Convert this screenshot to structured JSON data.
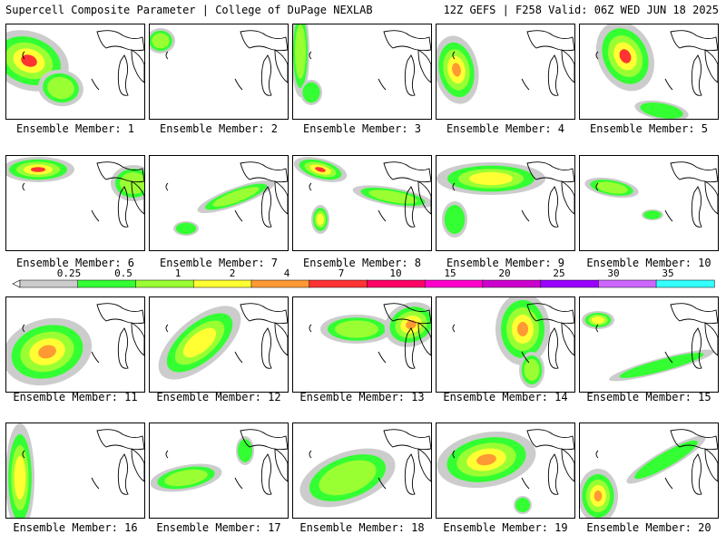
{
  "header": {
    "title": "Supercell Composite Parameter | College of DuPage NEXLAB",
    "run_info": "12Z GEFS | F258 Valid: 06Z WED JUN 18 2025"
  },
  "legend": {
    "levels": [
      "0.25",
      "0.5",
      "1",
      "2",
      "4",
      "7",
      "10",
      "15",
      "20",
      "25",
      "30",
      "35"
    ],
    "colors": [
      "#cccccc",
      "#33ff33",
      "#99ff33",
      "#ffff33",
      "#ff9933",
      "#ff3333",
      "#ff0066",
      "#ff00cc",
      "#cc00cc",
      "#9900ff",
      "#cc66ff",
      "#33ffff"
    ]
  },
  "members": [
    {
      "label": "Ensemble Member: 1"
    },
    {
      "label": "Ensemble Member: 2"
    },
    {
      "label": "Ensemble Member: 3"
    },
    {
      "label": "Ensemble Member: 4"
    },
    {
      "label": "Ensemble Member: 5"
    },
    {
      "label": "Ensemble Member: 6"
    },
    {
      "label": "Ensemble Member: 7"
    },
    {
      "label": "Ensemble Member: 8"
    },
    {
      "label": "Ensemble Member: 9"
    },
    {
      "label": "Ensemble Member: 10"
    },
    {
      "label": "Ensemble Member: 11"
    },
    {
      "label": "Ensemble Member: 12"
    },
    {
      "label": "Ensemble Member: 13"
    },
    {
      "label": "Ensemble Member: 14"
    },
    {
      "label": "Ensemble Member: 15"
    },
    {
      "label": "Ensemble Member: 16"
    },
    {
      "label": "Ensemble Member: 17"
    },
    {
      "label": "Ensemble Member: 18"
    },
    {
      "label": "Ensemble Member: 19"
    },
    {
      "label": "Ensemble Member: 20"
    }
  ]
}
